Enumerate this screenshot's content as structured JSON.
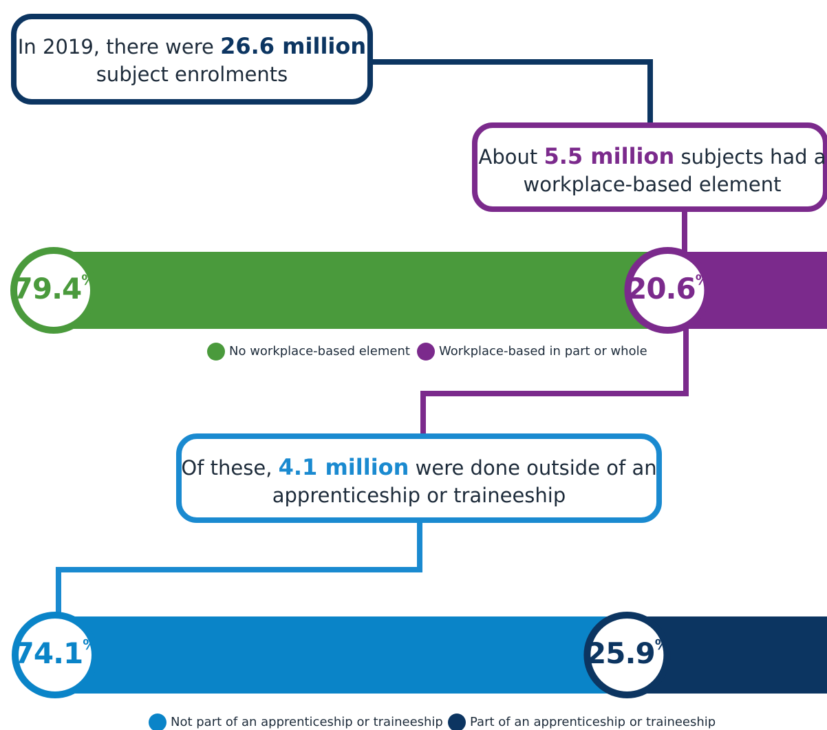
{
  "callouts": [
    {
      "parts": [
        "In 2019, there were ",
        "26.6 million",
        "subject enrolments"
      ]
    },
    {
      "parts": [
        "About ",
        "5.5 million",
        " subjects had a",
        "workplace-based element"
      ]
    },
    {
      "parts": [
        "Of these, ",
        "4.1 million",
        " were done outside of an",
        "apprenticeship or traineeship"
      ]
    }
  ],
  "chart_data": [
    {
      "type": "bar",
      "stacked": true,
      "series": [
        {
          "name": "No workplace-based element",
          "color": "#4a9a3c",
          "values": [
            79.4
          ],
          "value_labels": [
            "79.4%"
          ]
        },
        {
          "name": "Workplace-based in part or whole",
          "color": "#7b2a8c",
          "values": [
            20.6
          ],
          "value_labels": [
            "20.6%"
          ]
        }
      ]
    },
    {
      "type": "bar",
      "stacked": true,
      "series": [
        {
          "name": "Not part of an apprenticeship or traineeship",
          "color": "#0a84c8",
          "values": [
            74.1
          ],
          "value_labels": [
            "74.1%"
          ]
        },
        {
          "name": "Part of an apprenticeship or traineeship",
          "color": "#0c3561",
          "values": [
            25.9
          ],
          "value_labels": [
            "25.9%"
          ]
        }
      ]
    }
  ]
}
